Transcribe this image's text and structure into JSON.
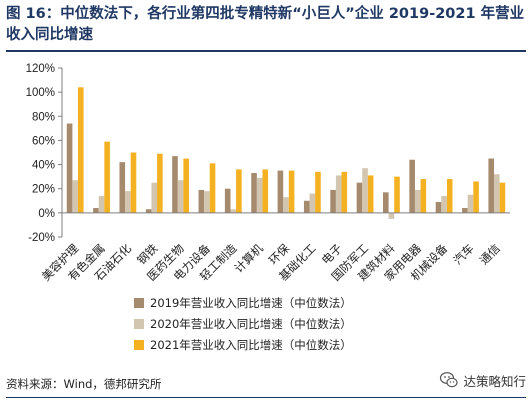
{
  "header": {
    "title": "图 16：中位数法下，各行业第四批专精特新“小巨人”企业 2019-2021 年营业收入同比增速"
  },
  "footer": {
    "source": "资料来源：Wind，德邦研究所",
    "watermark": "达策略知行"
  },
  "colors": {
    "title": "#1f3864",
    "series_2019": "#a68a6e",
    "series_2020": "#d3c6b1",
    "series_2021": "#f4b223"
  },
  "icons": {
    "watermark": "wechat-icon"
  },
  "chart_data": {
    "type": "bar",
    "categories": [
      "美容护理",
      "有色金属",
      "石油石化",
      "钢铁",
      "医药生物",
      "电力设备",
      "轻工制造",
      "计算机",
      "环保",
      "基础化工",
      "电子",
      "国防军工",
      "建筑材料",
      "家用电器",
      "机械设备",
      "汽车",
      "通信"
    ],
    "series": [
      {
        "name": "2019年营业收入同比增速（中位数法）",
        "values": [
          74,
          4,
          42,
          3,
          47,
          19,
          20,
          33,
          35,
          10,
          19,
          25,
          17,
          44,
          9,
          4,
          45
        ]
      },
      {
        "name": "2020年营业收入同比增速（中位数法）",
        "values": [
          27,
          14,
          18,
          25,
          27,
          18,
          3,
          29,
          13,
          16,
          31,
          37,
          -5,
          19,
          14,
          15,
          32
        ]
      },
      {
        "name": "2021年营业收入同比增速（中位数法）",
        "values": [
          104,
          59,
          50,
          49,
          45,
          41,
          36,
          36,
          35,
          34,
          34,
          31,
          30,
          28,
          28,
          26,
          25
        ]
      }
    ],
    "y_ticks": [
      "-20%",
      "0%",
      "20%",
      "40%",
      "60%",
      "80%",
      "100%",
      "120%"
    ],
    "ylim": [
      -20,
      120
    ],
    "legend_position": "bottom"
  }
}
